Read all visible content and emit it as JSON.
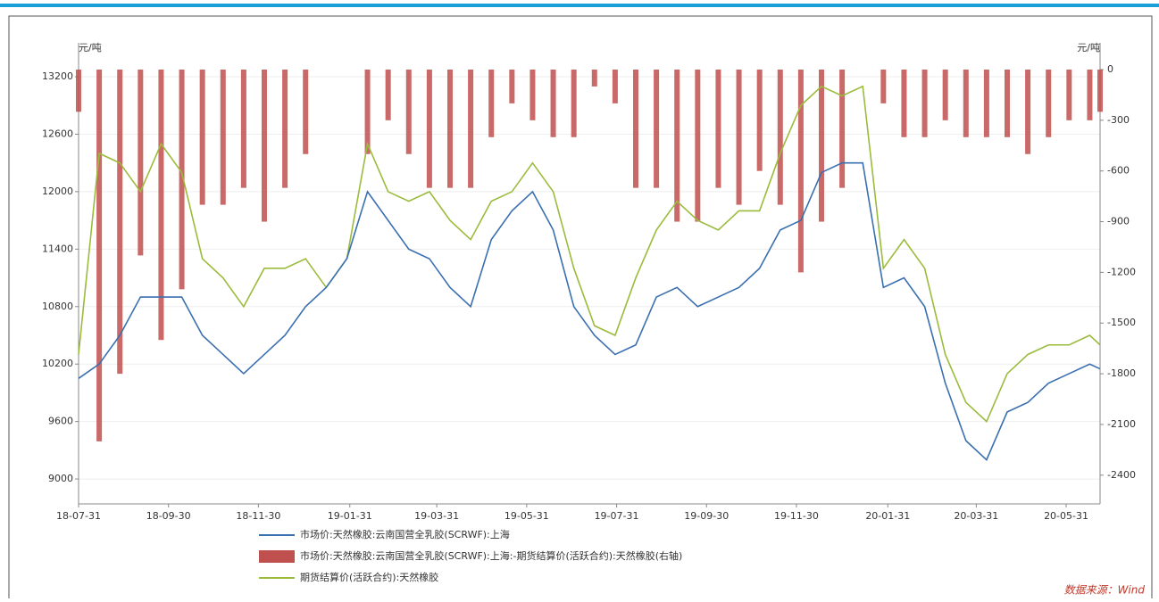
{
  "chart_data": {
    "type": "line",
    "y_unit": "元/吨",
    "y2_unit": "元/吨",
    "source": "数据来源：Wind",
    "x": [
      "18-07-31",
      "18-08-14",
      "18-08-28",
      "18-09-11",
      "18-09-25",
      "18-10-09",
      "18-10-23",
      "18-11-06",
      "18-11-20",
      "18-12-04",
      "18-12-18",
      "19-01-01",
      "19-01-15",
      "19-01-29",
      "19-02-12",
      "19-02-26",
      "19-03-12",
      "19-03-26",
      "19-04-09",
      "19-04-23",
      "19-05-07",
      "19-05-21",
      "19-06-04",
      "19-06-18",
      "19-07-02",
      "19-07-16",
      "19-07-30",
      "19-08-13",
      "19-08-27",
      "19-09-10",
      "19-09-24",
      "19-10-08",
      "19-10-22",
      "19-11-05",
      "19-11-19",
      "19-12-03",
      "19-12-17",
      "19-12-31",
      "20-01-14",
      "20-01-28",
      "20-02-11",
      "20-02-25",
      "20-03-10",
      "20-03-24",
      "20-04-07",
      "20-04-21",
      "20-05-05",
      "20-05-19",
      "20-06-02",
      "20-06-16",
      "20-06-23"
    ],
    "xlim": [
      "18-07-31",
      "20-06-23"
    ],
    "xticks": [
      "18-07-31",
      "18-09-30",
      "18-11-30",
      "19-01-31",
      "19-03-31",
      "19-05-31",
      "19-07-31",
      "19-09-30",
      "19-11-30",
      "20-01-31",
      "20-03-31",
      "20-05-31"
    ],
    "ylim": [
      8740,
      13275
    ],
    "yticks": [
      9000,
      9600,
      10200,
      10800,
      11400,
      12000,
      12600,
      13200
    ],
    "y2lim": [
      -2570,
      0
    ],
    "y2ticks": [
      -2400,
      -2100,
      -1800,
      -1500,
      -1200,
      -900,
      -600,
      -300,
      0
    ],
    "grid": true,
    "series": [
      {
        "name": "市场价:天然橡胶:云南国营全乳胶(SCRWF):上海",
        "color": "#3a6fb0",
        "kind": "line",
        "values": [
          10050,
          10200,
          10500,
          10900,
          10900,
          10900,
          10500,
          10300,
          10100,
          10300,
          10500,
          10800,
          11000,
          11300,
          12000,
          11700,
          11400,
          11300,
          11000,
          10800,
          11500,
          11800,
          12000,
          11600,
          10800,
          10500,
          10300,
          10400,
          10900,
          11000,
          10800,
          10900,
          11000,
          11200,
          11600,
          11700,
          12200,
          12300,
          12300,
          11000,
          11100,
          10800,
          10000,
          9400,
          9200,
          9700,
          9800,
          10000,
          10100,
          10200,
          10150
        ]
      },
      {
        "name": "市场价:天然橡胶:云南国营全乳胶(SCRWF):上海:-期货结算价(活跃合约):天然橡胶(右轴)",
        "color": "#c0504d",
        "kind": "bar",
        "axis": "y2",
        "values": [
          -250,
          -2200,
          -1800,
          -1100,
          -1600,
          -1300,
          -800,
          -800,
          -700,
          -900,
          -700,
          -500,
          null,
          null,
          -500,
          -300,
          -500,
          -700,
          -700,
          -700,
          -400,
          -200,
          -300,
          -400,
          -400,
          -100,
          -200,
          -700,
          -700,
          -900,
          -900,
          -700,
          -800,
          -600,
          -800,
          -1200,
          -900,
          -700,
          null,
          -200,
          -400,
          -400,
          -300,
          -400,
          -400,
          -400,
          -500,
          -400,
          -300,
          -300,
          -250
        ]
      },
      {
        "name": "期货结算价(活跃合约):天然橡胶",
        "color": "#9bbb3b",
        "kind": "line",
        "values": [
          10300,
          12400,
          12300,
          12000,
          12500,
          12200,
          11300,
          11100,
          10800,
          11200,
          11200,
          11300,
          11000,
          11300,
          12500,
          12000,
          11900,
          12000,
          11700,
          11500,
          11900,
          12000,
          12300,
          12000,
          11200,
          10600,
          10500,
          11100,
          11600,
          11900,
          11700,
          11600,
          11800,
          11800,
          12400,
          12900,
          13100,
          13000,
          13100,
          11200,
          11500,
          11200,
          10300,
          9800,
          9600,
          10100,
          10300,
          10400,
          10400,
          10500,
          10400
        ]
      }
    ]
  }
}
